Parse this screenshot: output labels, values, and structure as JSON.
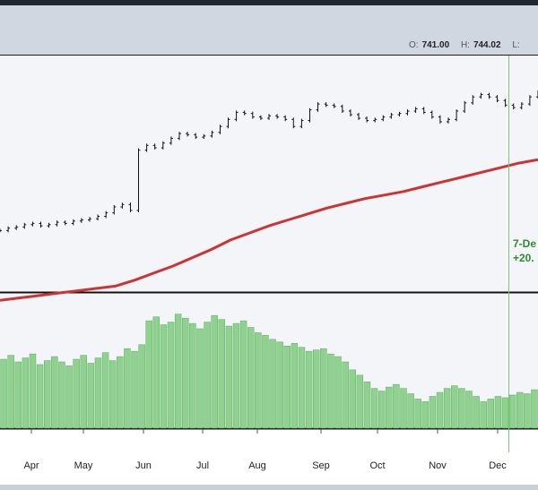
{
  "header": {
    "open_label": "O:",
    "open_value": "741.00",
    "high_label": "H:",
    "high_value": "744.02",
    "low_label": "L:"
  },
  "colors": {
    "price": "#111111",
    "moving_average": "#cc3333",
    "volume": "#8fd18f",
    "volume_edge": "#5daa5d",
    "cursor_line": "#7cc47c",
    "annotation": "#2e8b2e"
  },
  "annotation": {
    "line1": "7-De",
    "line2": "+20."
  },
  "chart_data": {
    "type": "line",
    "x_labels": [
      "Apr",
      "May",
      "Jun",
      "Jul",
      "Aug",
      "Sep",
      "Oct",
      "Nov",
      "Dec"
    ],
    "price_range_approx": [
      560,
      760
    ],
    "series": [
      {
        "style": "ohlc-bars",
        "values": [
          612,
          614,
          615,
          617,
          618,
          616,
          617,
          619,
          618,
          620,
          621,
          622,
          624,
          627,
          632,
          634,
          629,
          680,
          684,
          682,
          686,
          690,
          694,
          693,
          691,
          692,
          695,
          700,
          706,
          712,
          711,
          708,
          707,
          709,
          708,
          706,
          700,
          705,
          714,
          719,
          718,
          717,
          713,
          710,
          707,
          705,
          706,
          708,
          710,
          711,
          713,
          715,
          712,
          708,
          704,
          706,
          713,
          720,
          725,
          727,
          725,
          722,
          718,
          716,
          719,
          725,
          729
        ]
      },
      {
        "style": "moving-average",
        "values": [
          553,
          555,
          557,
          559,
          561,
          563,
          565,
          570,
          576,
          582,
          589,
          596,
          604,
          610,
          616,
          621,
          626,
          631,
          635,
          639,
          642,
          645,
          649,
          653,
          657,
          661,
          665,
          669,
          672
        ]
      },
      {
        "style": "volume-bars",
        "values": [
          52,
          55,
          50,
          53,
          56,
          48,
          51,
          54,
          50,
          47,
          52,
          55,
          49,
          53,
          57,
          51,
          54,
          60,
          58,
          63,
          81,
          84,
          78,
          80,
          86,
          83,
          79,
          75,
          80,
          85,
          82,
          77,
          79,
          81,
          76,
          72,
          70,
          67,
          65,
          62,
          64,
          61,
          58,
          59,
          60,
          56,
          54,
          50,
          44,
          40,
          35,
          30,
          28,
          31,
          33,
          30,
          26,
          22,
          20,
          24,
          27,
          30,
          32,
          30,
          28,
          24,
          20,
          22,
          24,
          23,
          25,
          27,
          26,
          29
        ]
      }
    ]
  }
}
